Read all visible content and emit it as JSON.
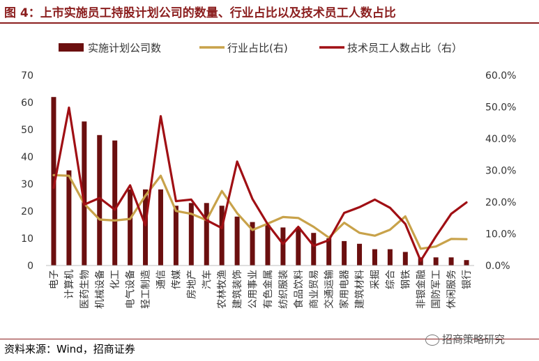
{
  "figure": {
    "title": "图 4：上市实施员工持股计划公司的数量、行业占比以及技术员工人数占比",
    "source": "资料来源：Wind，招商证券",
    "watermark": "招商策略研究"
  },
  "colors": {
    "bar": "#6b0f0f",
    "industry_line": "#c8a24a",
    "tech_line": "#a00f14",
    "rule": "#8b1e1e"
  },
  "chart_data": {
    "type": "bar",
    "categories": [
      "电子",
      "计算机",
      "医药生物",
      "机械设备",
      "化工",
      "电气设备",
      "轻工制造",
      "通信",
      "传媒",
      "房地产",
      "汽车",
      "农林牧渔",
      "建筑装饰",
      "公用事业",
      "有色金属",
      "纺织服装",
      "食品饮料",
      "商业贸易",
      "交通运输",
      "家用电器",
      "建筑材料",
      "采掘",
      "综合",
      "钢铁",
      "非银金融",
      "国防军工",
      "休闲服务",
      "银行"
    ],
    "series": [
      {
        "name": "实施计划公司数",
        "type": "bar",
        "axis": "left",
        "values": [
          62,
          35,
          53,
          48,
          46,
          28,
          28,
          28,
          22,
          23,
          23,
          22,
          18,
          16,
          15,
          14,
          14,
          12,
          10,
          9,
          8,
          6,
          6,
          5,
          3,
          3,
          3,
          2
        ]
      },
      {
        "name": "行业占比(右)",
        "type": "line",
        "axis": "right",
        "values": [
          28.5,
          28.3,
          19.5,
          14.5,
          14.2,
          14.7,
          22.0,
          28.3,
          17.2,
          16.3,
          14.3,
          23.5,
          16.5,
          11.2,
          13.2,
          15.3,
          15.0,
          12.2,
          8.8,
          13.5,
          10.3,
          9.4,
          11.3,
          15.5,
          5.3,
          6.0,
          8.4,
          8.3
        ]
      },
      {
        "name": "技术员工人数占比（右）",
        "type": "line",
        "axis": "right",
        "values": [
          24.5,
          49.8,
          19.2,
          21.3,
          17.6,
          25.3,
          12.7,
          47.1,
          20.3,
          20.8,
          14.3,
          11.8,
          32.8,
          21.0,
          13.0,
          6.8,
          12.2,
          6.2,
          8.0,
          16.6,
          18.4,
          20.8,
          18.2,
          13.1,
          1.5,
          9.2,
          16.3,
          19.9
        ]
      }
    ],
    "y_left": {
      "ticks": [
        "0",
        "10",
        "20",
        "30",
        "40",
        "50",
        "60",
        "70"
      ],
      "ylim": [
        0,
        70
      ]
    },
    "y_right": {
      "ticks": [
        "0.0%",
        "10.0%",
        "20.0%",
        "30.0%",
        "40.0%",
        "50.0%",
        "60.0%"
      ],
      "ylim": [
        0,
        60
      ]
    },
    "legend": {
      "position": "top",
      "items": [
        "实施计划公司数",
        "行业占比(右)",
        "技术员工人数占比（右）"
      ]
    },
    "grid": false
  }
}
